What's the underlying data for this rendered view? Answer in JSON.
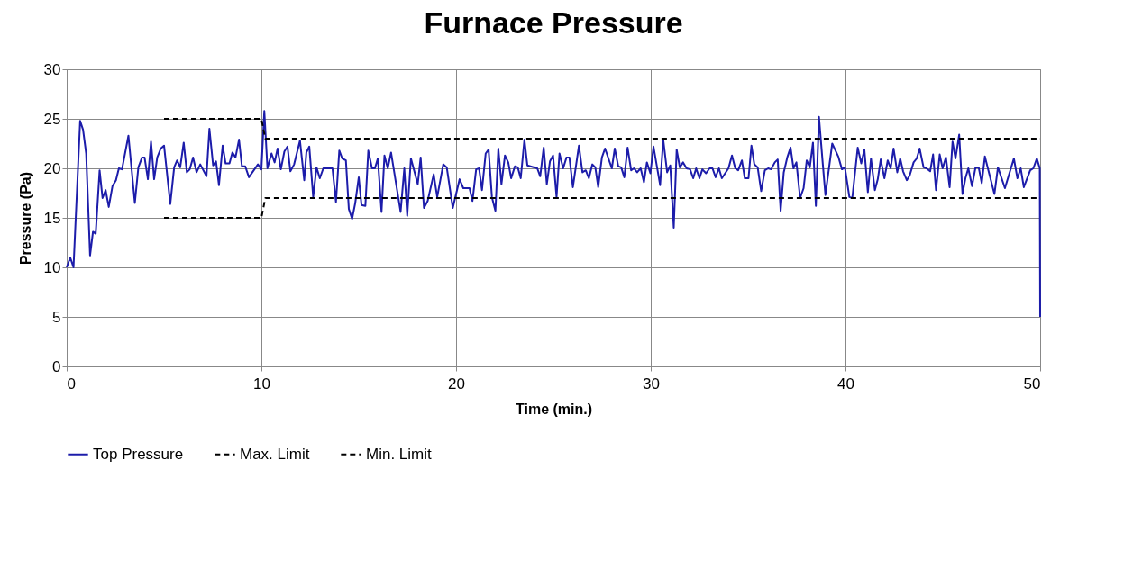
{
  "chart_data": {
    "type": "line",
    "title": "Furnace Pressure",
    "xlabel": "Time (min.)",
    "ylabel": "Pressure (Pa)",
    "xlim": [
      0,
      50
    ],
    "xticks": [
      0,
      10,
      20,
      30,
      40,
      50
    ],
    "ylim": [
      0,
      30
    ],
    "yticks": [
      0,
      5,
      10,
      15,
      20,
      25,
      30
    ],
    "grid": true,
    "legend": "bottom",
    "marker": "none",
    "series": [
      {
        "name": "Top Pressure",
        "color": "#1c1caa",
        "line_style": "solid",
        "x": [
          0,
          0.18,
          0.35,
          0.69,
          0.84,
          1.0,
          1.2,
          1.35,
          1.49,
          1.69,
          1.84,
          2.0,
          2.16,
          2.35,
          2.53,
          2.68,
          2.84,
          3.17,
          3.5,
          3.68,
          3.87,
          4.0,
          4.17,
          4.33,
          4.49,
          4.65,
          4.83,
          5.0,
          5.32,
          5.52,
          5.67,
          5.83,
          6.01,
          6.17,
          6.32,
          6.49,
          6.67,
          6.86,
          7.18,
          7.33,
          7.52,
          7.67,
          7.82,
          8.01,
          8.16,
          8.36,
          8.51,
          8.67,
          8.85,
          9.0,
          9.17,
          9.36,
          9.82,
          10.0,
          10.15,
          10.31,
          10.52,
          10.68,
          10.83,
          11.0,
          11.18,
          11.34,
          11.49,
          11.68,
          11.98,
          12.2,
          12.31,
          12.46,
          12.66,
          12.83,
          13.0,
          13.18,
          13.65,
          13.83,
          14.0,
          14.15,
          14.34,
          14.49,
          14.66,
          14.82,
          15.0,
          15.14,
          15.34,
          15.49,
          15.68,
          15.83,
          15.98,
          16.17,
          16.32,
          16.49,
          16.66,
          17.15,
          17.34,
          17.49,
          17.68,
          18.03,
          18.18,
          18.35,
          18.54,
          18.85,
          19.03,
          19.34,
          19.52,
          19.83,
          20.18,
          20.37,
          20.69,
          20.84,
          21.03,
          21.18,
          21.33,
          21.52,
          21.67,
          21.84,
          22.02,
          22.17,
          22.33,
          22.51,
          22.68,
          22.83,
          23.02,
          23.17,
          23.32,
          23.51,
          23.66,
          24.17,
          24.32,
          24.5,
          24.66,
          24.82,
          24.98,
          25.16,
          25.31,
          25.5,
          25.67,
          25.82,
          26.0,
          26.31,
          26.49,
          26.66,
          26.82,
          27.0,
          27.15,
          27.3,
          27.49,
          27.65,
          28.0,
          28.15,
          28.33,
          28.48,
          28.64,
          28.81,
          28.99,
          29.14,
          29.3,
          29.48,
          29.65,
          29.8,
          29.98,
          30.14,
          30.48,
          30.64,
          30.84,
          31.0,
          31.18,
          31.33,
          31.49,
          31.66,
          31.84,
          32.02,
          32.18,
          32.33,
          32.5,
          32.65,
          32.84,
          33.02,
          33.17,
          33.33,
          33.5,
          33.65,
          33.99,
          34.17,
          34.34,
          34.49,
          34.68,
          34.83,
          35.02,
          35.17,
          35.32,
          35.49,
          35.67,
          35.86,
          36.03,
          36.18,
          36.37,
          36.52,
          36.67,
          36.83,
          37.01,
          37.18,
          37.33,
          37.48,
          37.67,
          37.85,
          38.01,
          38.17,
          38.33,
          38.48,
          38.64,
          38.82,
          38.97,
          39.32,
          39.63,
          39.82,
          39.97,
          40.2,
          40.35,
          40.63,
          40.81,
          40.97,
          41.15,
          41.31,
          41.51,
          41.66,
          41.81,
          42.0,
          42.17,
          42.32,
          42.47,
          42.66,
          42.81,
          42.96,
          43.15,
          43.3,
          43.5,
          43.66,
          43.81,
          44.01,
          44.16,
          44.35,
          44.5,
          44.65,
          44.84,
          44.99,
          45.16,
          45.35,
          45.5,
          45.65,
          45.84,
          46.01,
          46.16,
          46.31,
          46.5,
          46.68,
          46.84,
          47.0,
          47.16,
          47.34,
          47.65,
          47.83,
          48.19,
          48.65,
          48.83,
          49.0,
          49.16,
          49.49,
          49.65,
          49.83,
          49.98,
          50.0
        ],
        "values": [
          10,
          11,
          10,
          24.8,
          23.9,
          21.5,
          11.2,
          13.6,
          13.4,
          19.8,
          17,
          17.8,
          16.1,
          18.2,
          18.8,
          20,
          19.9,
          23.3,
          16.5,
          20.1,
          21.1,
          21.1,
          18.9,
          22.7,
          18.9,
          21.1,
          22,
          22.3,
          16.4,
          20.1,
          20.8,
          20.1,
          22.6,
          19.6,
          19.9,
          21.1,
          19.6,
          20.4,
          19.2,
          24,
          20.3,
          20.7,
          18.3,
          22.3,
          20.5,
          20.5,
          21.6,
          21.1,
          22.9,
          20.2,
          20.2,
          19.1,
          20.4,
          19.9,
          25.8,
          20,
          21.5,
          20.6,
          22,
          19.9,
          21.7,
          22.2,
          19.7,
          20.4,
          22.8,
          18.8,
          21.6,
          22.2,
          17.1,
          20.1,
          19,
          20,
          20,
          16.6,
          21.8,
          21,
          20.8,
          15.9,
          14.9,
          16.5,
          19.1,
          16.3,
          16.2,
          21.8,
          20,
          20,
          21,
          15.6,
          21.3,
          20,
          21.6,
          15.6,
          20,
          15.2,
          21,
          18.4,
          21.1,
          16,
          16.7,
          19.4,
          17.1,
          20.4,
          20.1,
          16,
          18.9,
          18,
          18,
          16.7,
          19.9,
          20,
          17.8,
          21.5,
          21.9,
          17.1,
          15.7,
          22,
          18.4,
          21.3,
          20.6,
          19,
          20.2,
          20.1,
          19,
          22.9,
          20.3,
          20,
          19.2,
          22.1,
          18.4,
          20.7,
          21.3,
          17.1,
          21.5,
          20,
          21.1,
          21.1,
          18.1,
          22.3,
          19.6,
          19.8,
          19,
          20.4,
          20.1,
          18.1,
          21.1,
          22,
          20,
          22,
          20.2,
          20.1,
          19.1,
          22.1,
          19.8,
          20,
          19.6,
          20,
          18.6,
          20.6,
          19.5,
          22.2,
          18.3,
          22.9,
          19.6,
          20.3,
          14,
          21.9,
          20.1,
          20.6,
          20,
          19.9,
          19,
          20,
          19,
          19.9,
          19.5,
          20,
          20,
          19.1,
          20,
          19,
          20,
          21.3,
          20,
          19.8,
          20.8,
          19,
          19,
          22.3,
          20.4,
          20.1,
          17.7,
          19.8,
          20,
          19.9,
          20.6,
          20.9,
          15.7,
          19.6,
          21.1,
          22.1,
          20,
          20.6,
          17,
          18,
          20.8,
          20.1,
          22.6,
          16.2,
          25.2,
          20.8,
          17.3,
          22.5,
          21.2,
          19.9,
          20.1,
          17.1,
          17,
          22.1,
          20.5,
          21.9,
          17.6,
          21,
          17.8,
          18.9,
          20.9,
          19,
          20.8,
          20,
          22,
          19.6,
          21,
          19.7,
          18.8,
          19.3,
          20.6,
          21,
          22,
          20.1,
          20,
          19.7,
          21.4,
          17.8,
          21.4,
          20,
          21.1,
          18.1,
          22.7,
          21,
          23.4,
          17.4,
          19,
          20,
          18.2,
          20.1,
          20.1,
          18.5,
          21.2,
          19.8,
          17.4,
          20.1,
          18,
          21,
          19,
          20,
          18.1,
          19.8,
          20,
          21,
          20,
          5
        ]
      },
      {
        "name": "Max. Limit",
        "color": "#000000",
        "line_style": "dashed",
        "x": [
          5,
          10,
          10.2,
          50
        ],
        "values": [
          25,
          25,
          23,
          23
        ]
      },
      {
        "name": "Min. Limit",
        "color": "#000000",
        "line_style": "dashed",
        "x": [
          5,
          10,
          10.2,
          50
        ],
        "values": [
          15,
          15,
          17,
          17
        ]
      }
    ]
  }
}
